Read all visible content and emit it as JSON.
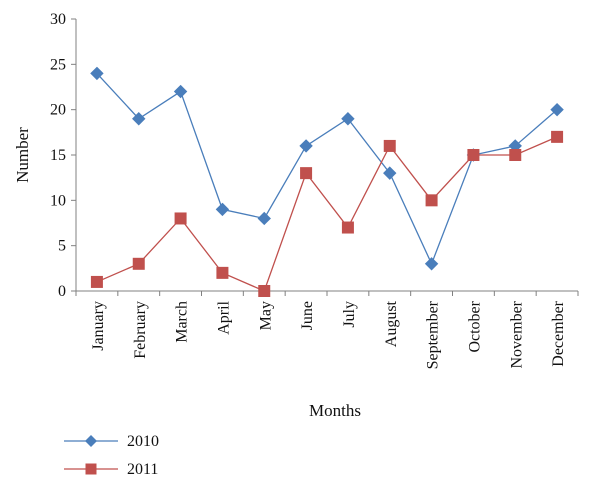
{
  "chart_data": {
    "type": "line",
    "title": "",
    "xlabel": "Months",
    "ylabel": "Number",
    "categories": [
      "January",
      "February",
      "March",
      "April",
      "May",
      "June",
      "July",
      "August",
      "September",
      "October",
      "November",
      "December"
    ],
    "ylim": [
      0,
      30
    ],
    "yticks": [
      0,
      5,
      10,
      15,
      20,
      25,
      30
    ],
    "grid": false,
    "legend_position": "bottom-left",
    "series": [
      {
        "name": "2010",
        "color": "#4a7ebb",
        "marker": "diamond",
        "values": [
          24,
          19,
          22,
          9,
          8,
          16,
          19,
          13,
          3,
          15,
          16,
          20
        ]
      },
      {
        "name": "2011",
        "color": "#c0504d",
        "marker": "square",
        "values": [
          1,
          3,
          8,
          2,
          0,
          13,
          7,
          16,
          10,
          15,
          15,
          17
        ]
      }
    ]
  }
}
